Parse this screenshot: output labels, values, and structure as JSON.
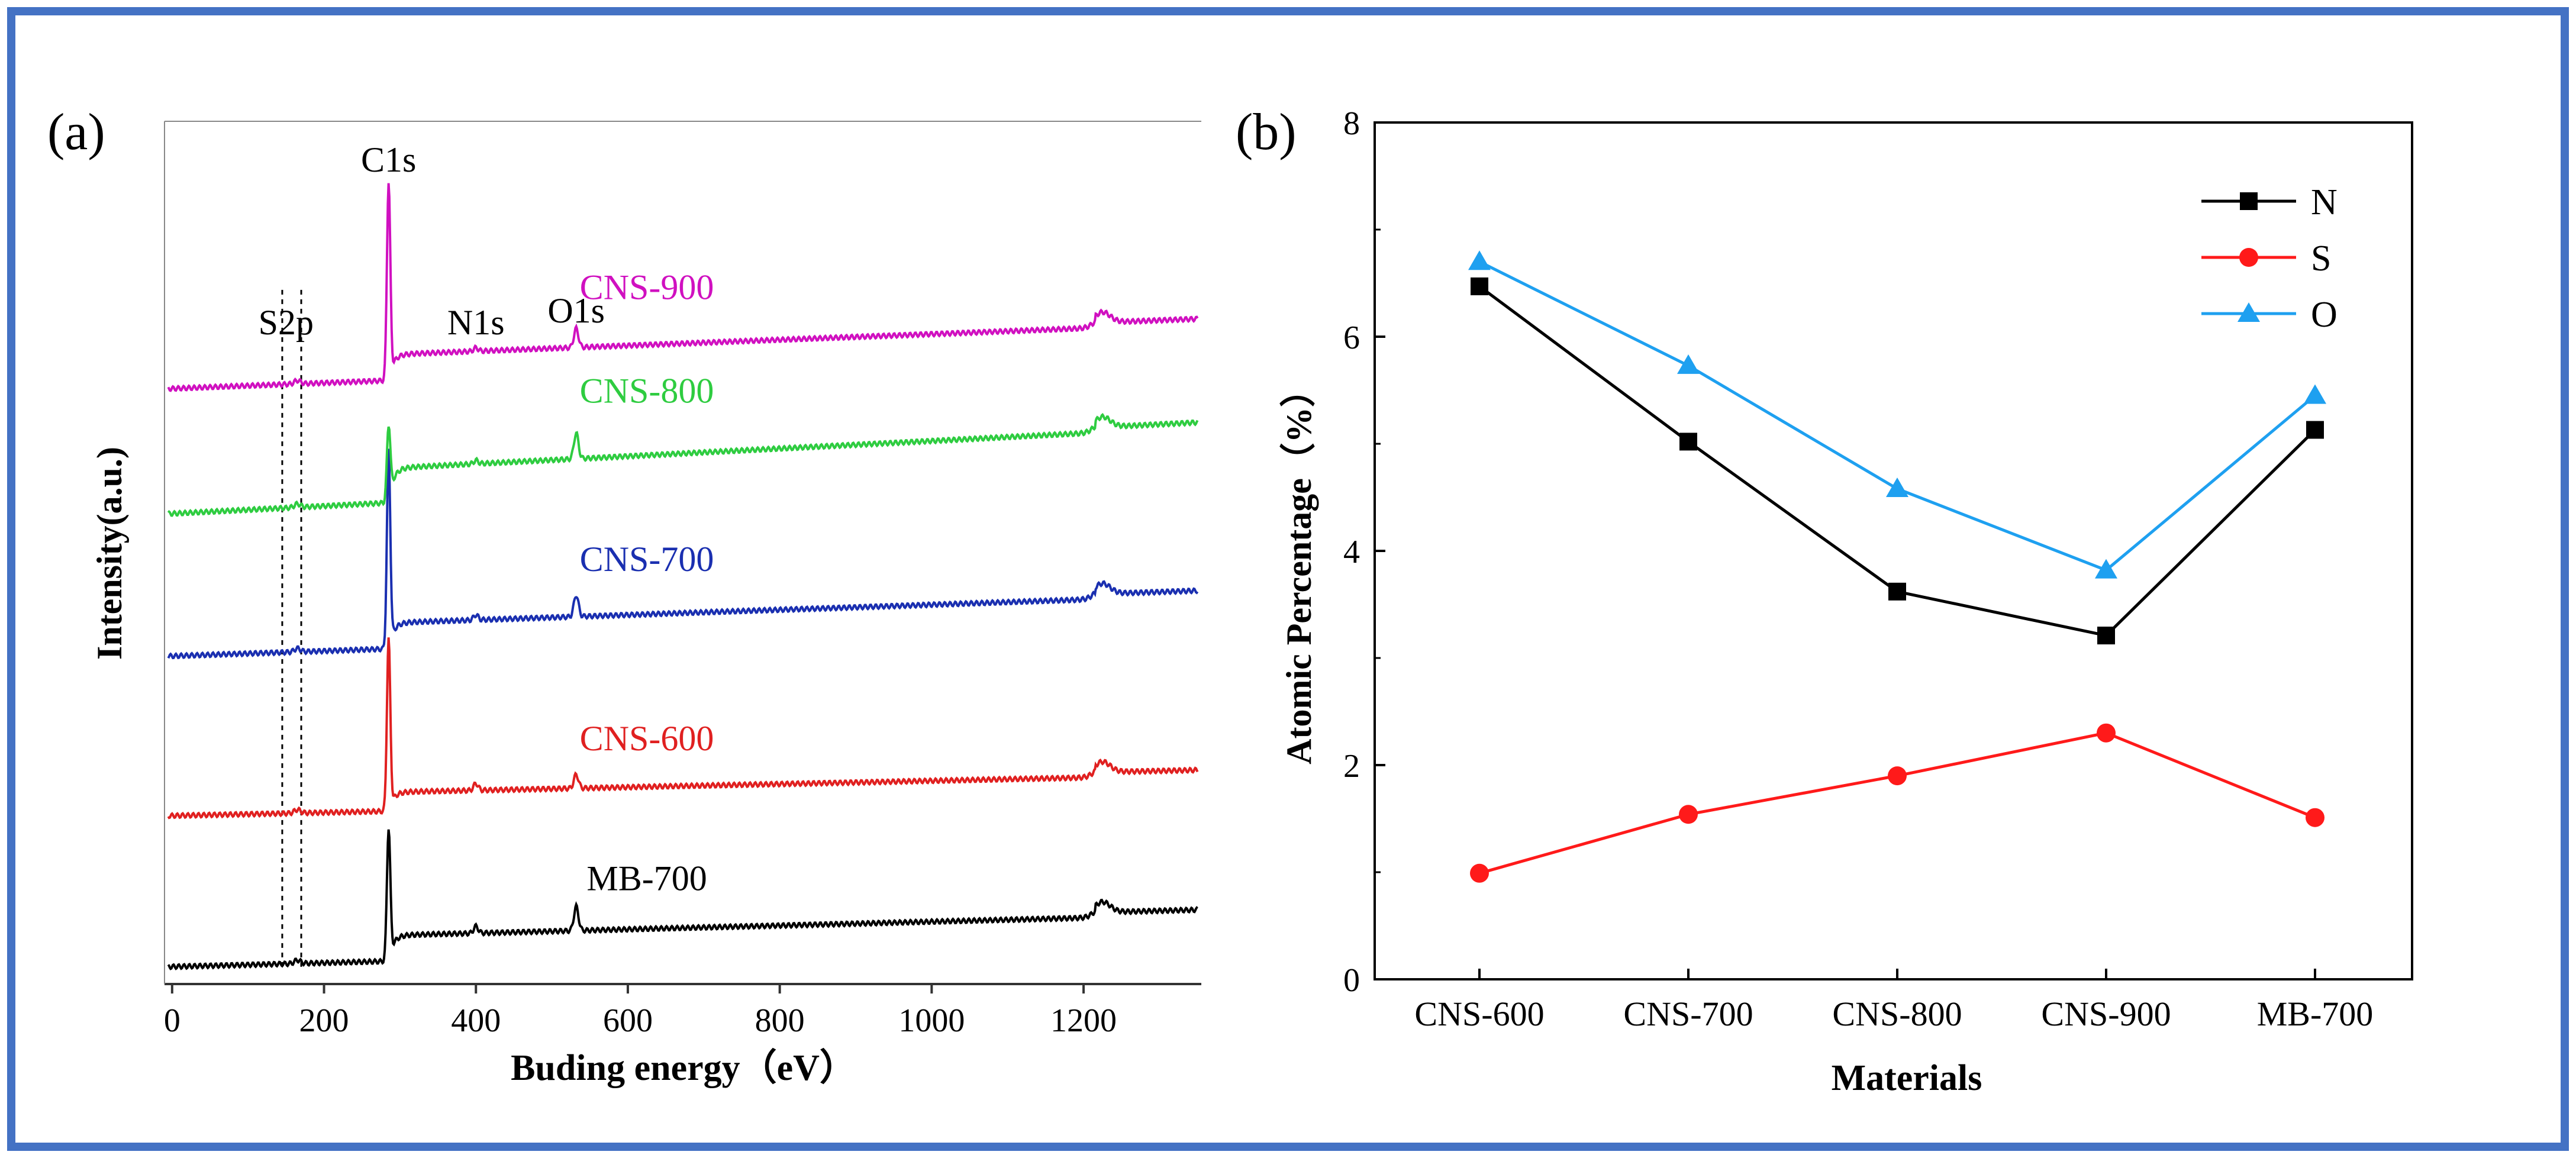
{
  "colors": {
    "frame_border": "#4472C4",
    "axis": "#000000",
    "mb700": "#000000",
    "cns600": "#E02020",
    "cns700": "#1A2FB0",
    "cns800": "#2ECC40",
    "cns900": "#D010C0",
    "series_N": "#000000",
    "series_S": "#FF1A1A",
    "series_O": "#1EA0F0"
  },
  "chart_data": [
    {
      "type": "line",
      "panel_label": "(a)",
      "xlabel": "Buding energy（eV）",
      "ylabel": "Intensity(a.u.)",
      "xlim": [
        -10,
        1355
      ],
      "xticks": [
        0,
        200,
        400,
        600,
        800,
        1000,
        1200
      ],
      "peak_labels": [
        {
          "text": "S2p",
          "x": 150
        },
        {
          "text": "C1s",
          "x": 285
        },
        {
          "text": "N1s",
          "x": 400
        },
        {
          "text": "O1s",
          "x": 532
        }
      ],
      "s2p_marker_lines_x": [
        145,
        170
      ],
      "series": [
        {
          "name": "MB-700",
          "color": "mb700",
          "baseline_start": 0.02,
          "baseline_end": 0.05,
          "step": 0.03,
          "c1s_height": 0.155,
          "o1s_height": 0.028,
          "n1s_height": 0.008
        },
        {
          "name": "CNS-600",
          "color": "cns600",
          "baseline_start": 0.195,
          "baseline_end": 0.22,
          "step": 0.022,
          "c1s_height": 0.2,
          "o1s_height": 0.016,
          "n1s_height": 0.008
        },
        {
          "name": "CNS-700",
          "color": "cns700",
          "baseline_start": 0.38,
          "baseline_end": 0.42,
          "step": 0.03,
          "c1s_height": 0.23,
          "o1s_height": 0.025,
          "n1s_height": 0.006
        },
        {
          "name": "CNS-800",
          "color": "cns800",
          "baseline_start": 0.545,
          "baseline_end": 0.605,
          "step": 0.04,
          "c1s_height": 0.09,
          "o1s_height": 0.03,
          "n1s_height": 0.004
        },
        {
          "name": "CNS-900",
          "color": "cns900",
          "baseline_start": 0.69,
          "baseline_end": 0.735,
          "step": 0.03,
          "c1s_height": 0.23,
          "o1s_height": 0.022,
          "n1s_height": 0.004
        }
      ]
    },
    {
      "type": "line",
      "panel_label": "(b)",
      "xlabel": "Materials",
      "ylabel": "Atomic Percentage（%）",
      "categories": [
        "CNS-600",
        "CNS-700",
        "CNS-800",
        "CNS-900",
        "MB-700"
      ],
      "ylim": [
        0,
        8
      ],
      "yticks": [
        0,
        2,
        4,
        6,
        8
      ],
      "legend_position": "top-right",
      "series": [
        {
          "name": "N",
          "marker": "square",
          "color": "series_N",
          "values": [
            6.47,
            5.02,
            3.62,
            3.21,
            5.13
          ]
        },
        {
          "name": "S",
          "marker": "circle",
          "color": "series_S",
          "values": [
            0.99,
            1.54,
            1.9,
            2.3,
            1.51
          ]
        },
        {
          "name": "O",
          "marker": "triangle",
          "color": "series_O",
          "values": [
            6.7,
            5.73,
            4.58,
            3.82,
            5.45
          ]
        }
      ]
    }
  ]
}
